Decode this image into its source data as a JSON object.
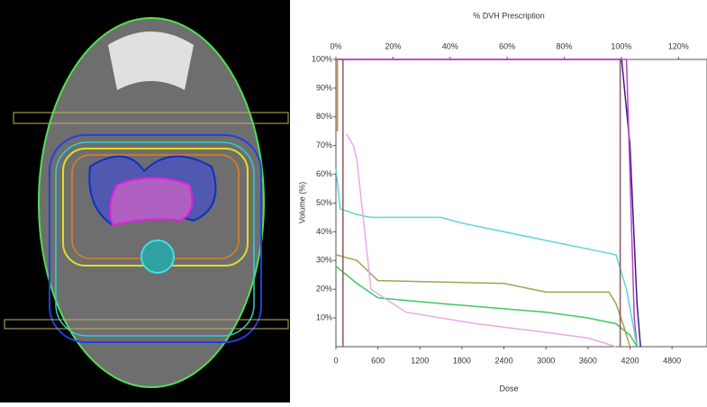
{
  "chart_data": {
    "type": "line",
    "title": "% DVH Prescription",
    "x_label": "Dose",
    "y_label": "Volume (%)",
    "xlim": [
      0,
      5300
    ],
    "xticks": [
      0,
      600,
      1200,
      1800,
      2400,
      3000,
      3600,
      4200,
      4800
    ],
    "x2lim": [
      0,
      130
    ],
    "x2ticks": [
      {
        "value": 0,
        "label": "0%"
      },
      {
        "value": 20,
        "label": "20%"
      },
      {
        "value": 40,
        "label": "40%"
      },
      {
        "value": 60,
        "label": "60%"
      },
      {
        "value": 80,
        "label": "80%"
      },
      {
        "value": 100,
        "label": "100%"
      },
      {
        "value": 120,
        "label": "120%"
      }
    ],
    "ylim": [
      0,
      100
    ],
    "yticks": [
      {
        "value": 10,
        "label": "10%"
      },
      {
        "value": 20,
        "label": "20%"
      },
      {
        "value": 30,
        "label": "30%"
      },
      {
        "value": 40,
        "label": "40%"
      },
      {
        "value": 50,
        "label": "50%"
      },
      {
        "value": 60,
        "label": "60%"
      },
      {
        "value": 70,
        "label": "70%"
      },
      {
        "value": 80,
        "label": "80%"
      },
      {
        "value": 90,
        "label": "90%"
      },
      {
        "value": 100,
        "label": "100%"
      }
    ],
    "series": [
      {
        "color": "#3a1a8c",
        "x": [
          0,
          4080,
          4200,
          4300,
          4350
        ],
        "values": [
          100,
          100,
          70,
          15,
          0
        ]
      },
      {
        "color": "#c040c0",
        "x": [
          0,
          4150,
          4200,
          4260,
          4300
        ],
        "values": [
          100,
          100,
          60,
          10,
          0
        ]
      },
      {
        "color": "#5ad8d8",
        "x": [
          0,
          60,
          300,
          500,
          1500,
          1800,
          2400,
          3000,
          3800,
          4000,
          4150,
          4300
        ],
        "values": [
          62,
          48,
          46,
          45,
          45,
          43,
          40,
          37,
          33,
          32,
          20,
          0
        ]
      },
      {
        "color": "#a8a050",
        "x": [
          0,
          300,
          600,
          2400,
          3000,
          3900,
          4000,
          4100,
          4200
        ],
        "values": [
          32,
          30,
          23,
          22,
          19,
          19,
          15,
          8,
          0
        ]
      },
      {
        "color": "#40c860",
        "x": [
          0,
          300,
          600,
          1500,
          3000,
          3600,
          4000,
          4200,
          4300
        ],
        "values": [
          28,
          22,
          17,
          15,
          12,
          10,
          8,
          4,
          0
        ]
      },
      {
        "color": "#e8a8e8",
        "x": [
          150,
          250,
          300,
          500,
          1000,
          2000,
          3000,
          3600,
          4000
        ],
        "values": [
          74,
          70,
          65,
          20,
          12,
          8,
          5,
          3,
          0
        ]
      },
      {
        "color": "#e08020",
        "x": [
          20,
          20
        ],
        "values": [
          100,
          75
        ]
      },
      {
        "color": "#8a5a5a",
        "x": [
          100,
          100
        ],
        "values": [
          100,
          0
        ]
      },
      {
        "color": "#8a5a5a",
        "x": [
          4060,
          4060
        ],
        "values": [
          100,
          0
        ]
      }
    ]
  }
}
